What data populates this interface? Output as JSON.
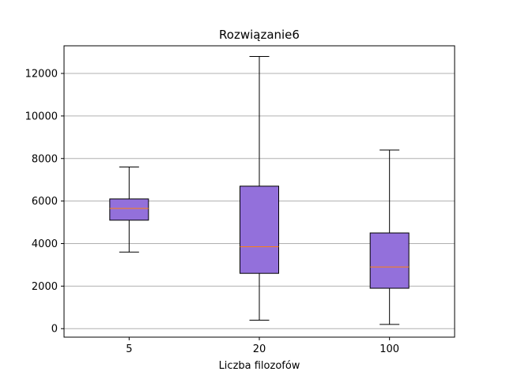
{
  "chart_data": {
    "type": "box",
    "title": "Rozwiązanie6",
    "xlabel": "Liczba filozofów",
    "ylabel": "",
    "categories": [
      "5",
      "20",
      "100"
    ],
    "boxes": [
      {
        "category": "5",
        "whisker_low": 3600,
        "q1": 5100,
        "median": 5650,
        "q3": 6100,
        "whisker_high": 7600
      },
      {
        "category": "20",
        "whisker_low": 400,
        "q1": 2600,
        "median": 3850,
        "q3": 6700,
        "whisker_high": 12800
      },
      {
        "category": "100",
        "whisker_low": 200,
        "q1": 1900,
        "median": 2900,
        "q3": 4500,
        "whisker_high": 8400
      }
    ],
    "ylim": [
      -400,
      13300
    ],
    "yticks": [
      0,
      2000,
      4000,
      6000,
      8000,
      10000,
      12000
    ],
    "ytick_labels": [
      "0",
      "2000",
      "4000",
      "6000",
      "8000",
      "10000",
      "12000"
    ],
    "grid": "y-only",
    "colors": {
      "box_fill": "#9370DB",
      "median": "#ff7f0e",
      "grid": "#b0b0b0",
      "edge": "#000000"
    }
  }
}
